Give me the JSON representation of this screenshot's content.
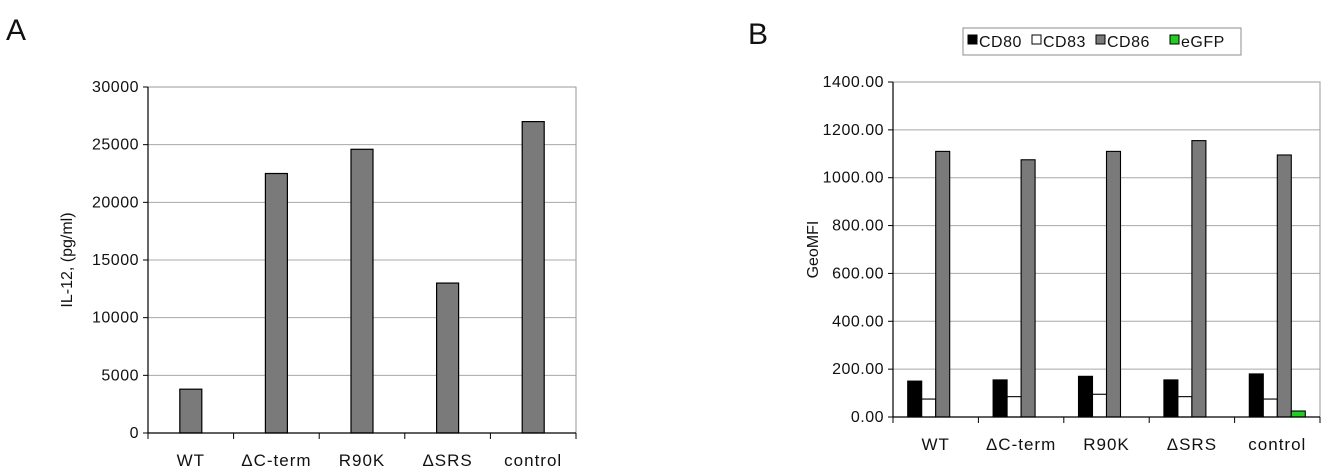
{
  "panels": {
    "a": "A",
    "b": "B"
  },
  "chart_data": [
    {
      "type": "bar",
      "categories": [
        "WT",
        "ΔC-term",
        "R90K",
        "ΔSRS",
        "control"
      ],
      "values": [
        3800,
        22500,
        24600,
        13000,
        27000
      ],
      "ylabel": "IL-12, (pg/ml)",
      "ylim": [
        0,
        30000
      ],
      "yticks": [
        "0",
        "5000",
        "10000",
        "15000",
        "20000",
        "25000",
        "30000"
      ],
      "grid": true,
      "bar_color": "#7a7a7a"
    },
    {
      "type": "bar",
      "categories": [
        "WT",
        "ΔC-term",
        "R90K",
        "ΔSRS",
        "control"
      ],
      "series": [
        {
          "name": "CD80",
          "color": "#000000",
          "values": [
            150,
            155,
            170,
            155,
            180
          ]
        },
        {
          "name": "CD83",
          "color": "#ffffff",
          "values": [
            75,
            85,
            95,
            85,
            75
          ]
        },
        {
          "name": "CD86",
          "color": "#7a7a7a",
          "values": [
            1110,
            1075,
            1110,
            1155,
            1095
          ]
        },
        {
          "name": "eGFP",
          "color": "#22cc22",
          "values": [
            0,
            0,
            0,
            0,
            25
          ]
        }
      ],
      "ylabel": "GeoMFI",
      "ylim": [
        0,
        1400
      ],
      "yticks": [
        "0.00",
        "200.00",
        "400.00",
        "600.00",
        "800.00",
        "1000.00",
        "1200.00",
        "1400.00"
      ],
      "grid": true,
      "legend": "top"
    }
  ]
}
